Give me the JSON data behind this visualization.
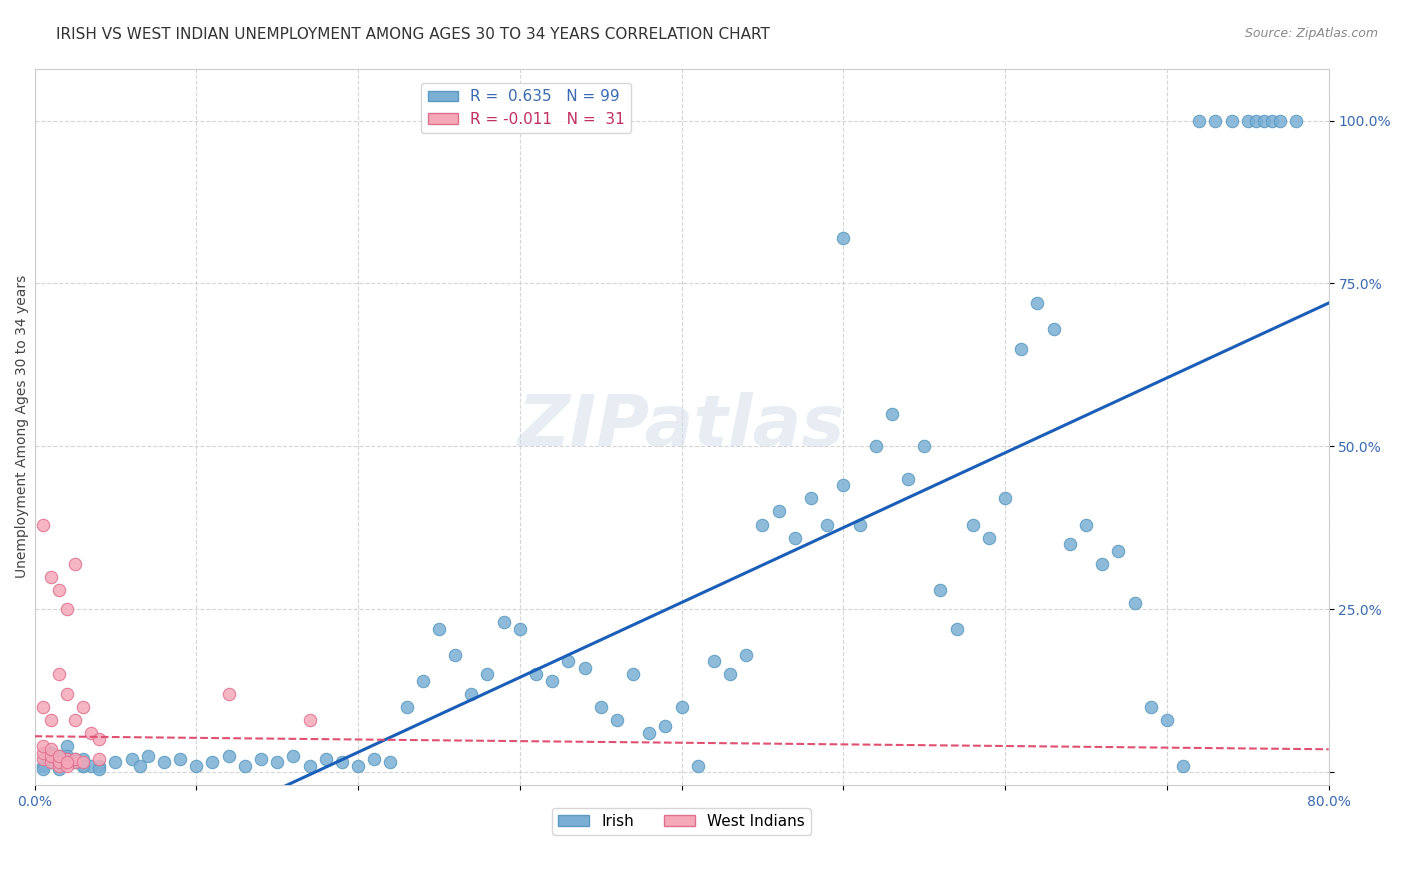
{
  "title": "IRISH VS WEST INDIAN UNEMPLOYMENT AMONG AGES 30 TO 34 YEARS CORRELATION CHART",
  "source": "Source: ZipAtlas.com",
  "xlabel": "",
  "ylabel": "Unemployment Among Ages 30 to 34 years",
  "xlim": [
    0.0,
    0.8
  ],
  "ylim": [
    -0.02,
    1.08
  ],
  "xticks": [
    0.0,
    0.1,
    0.2,
    0.3,
    0.4,
    0.5,
    0.6,
    0.7,
    0.8
  ],
  "xticklabels": [
    "0.0%",
    "",
    "",
    "",
    "",
    "",
    "",
    "",
    "80.0%"
  ],
  "yticks": [
    0.0,
    0.25,
    0.5,
    0.75,
    1.0
  ],
  "yticklabels": [
    "",
    "25.0%",
    "50.0%",
    "75.0%",
    "100.0%"
  ],
  "irish_color": "#7bafd4",
  "irish_edge_color": "#5a9ac0",
  "west_indian_color": "#f4a8b8",
  "west_indian_edge_color": "#e07090",
  "irish_line_color": "#1a5eb8",
  "west_indian_line_color": "#e05070",
  "irish_R": 0.635,
  "irish_N": 99,
  "west_indian_R": -0.011,
  "west_indian_N": 31,
  "irish_scatter_x": [
    0.02,
    0.01,
    0.03,
    0.01,
    0.015,
    0.025,
    0.005,
    0.01,
    0.02,
    0.015,
    0.03,
    0.04,
    0.005,
    0.02,
    0.01,
    0.035,
    0.02,
    0.025,
    0.015,
    0.03,
    0.04,
    0.05,
    0.06,
    0.065,
    0.07,
    0.08,
    0.09,
    0.1,
    0.11,
    0.12,
    0.13,
    0.14,
    0.15,
    0.16,
    0.17,
    0.18,
    0.19,
    0.2,
    0.21,
    0.22,
    0.23,
    0.24,
    0.25,
    0.26,
    0.27,
    0.28,
    0.29,
    0.3,
    0.31,
    0.32,
    0.33,
    0.34,
    0.35,
    0.36,
    0.37,
    0.38,
    0.39,
    0.4,
    0.41,
    0.42,
    0.43,
    0.44,
    0.45,
    0.46,
    0.47,
    0.48,
    0.49,
    0.5,
    0.5,
    0.51,
    0.52,
    0.53,
    0.54,
    0.55,
    0.56,
    0.57,
    0.58,
    0.59,
    0.6,
    0.61,
    0.62,
    0.63,
    0.64,
    0.65,
    0.66,
    0.67,
    0.68,
    0.69,
    0.7,
    0.71,
    0.72,
    0.73,
    0.74,
    0.75,
    0.755,
    0.76,
    0.765,
    0.77,
    0.78
  ],
  "irish_scatter_y": [
    0.04,
    0.02,
    0.01,
    0.015,
    0.005,
    0.02,
    0.01,
    0.03,
    0.025,
    0.015,
    0.02,
    0.01,
    0.005,
    0.015,
    0.03,
    0.01,
    0.02,
    0.015,
    0.025,
    0.01,
    0.005,
    0.015,
    0.02,
    0.01,
    0.025,
    0.015,
    0.02,
    0.01,
    0.015,
    0.025,
    0.01,
    0.02,
    0.015,
    0.025,
    0.01,
    0.02,
    0.015,
    0.01,
    0.02,
    0.015,
    0.1,
    0.14,
    0.22,
    0.18,
    0.12,
    0.15,
    0.23,
    0.22,
    0.15,
    0.14,
    0.17,
    0.16,
    0.1,
    0.08,
    0.15,
    0.06,
    0.07,
    0.1,
    0.01,
    0.17,
    0.15,
    0.18,
    0.38,
    0.4,
    0.36,
    0.42,
    0.38,
    0.44,
    0.82,
    0.38,
    0.5,
    0.55,
    0.45,
    0.5,
    0.28,
    0.22,
    0.38,
    0.36,
    0.42,
    0.65,
    0.72,
    0.68,
    0.35,
    0.38,
    0.32,
    0.34,
    0.26,
    0.1,
    0.08,
    0.01,
    1.0,
    1.0,
    1.0,
    1.0,
    1.0,
    1.0,
    1.0,
    1.0,
    1.0
  ],
  "west_indian_scatter_x": [
    0.005,
    0.01,
    0.015,
    0.02,
    0.025,
    0.005,
    0.01,
    0.015,
    0.02,
    0.025,
    0.005,
    0.01,
    0.015,
    0.02,
    0.03,
    0.04,
    0.005,
    0.01,
    0.015,
    0.02,
    0.025,
    0.03,
    0.035,
    0.04,
    0.005,
    0.01,
    0.015,
    0.02,
    0.025,
    0.12,
    0.17
  ],
  "west_indian_scatter_y": [
    0.02,
    0.015,
    0.01,
    0.02,
    0.015,
    0.03,
    0.025,
    0.015,
    0.01,
    0.02,
    0.04,
    0.035,
    0.025,
    0.015,
    0.015,
    0.02,
    0.1,
    0.08,
    0.15,
    0.12,
    0.08,
    0.1,
    0.06,
    0.05,
    0.38,
    0.3,
    0.28,
    0.25,
    0.32,
    0.12,
    0.08
  ],
  "background_color": "#ffffff",
  "grid_color": "#cccccc",
  "watermark_text": "ZIPatlas",
  "watermark_color": "#d0dde8",
  "title_fontsize": 11,
  "label_fontsize": 10,
  "tick_fontsize": 10
}
